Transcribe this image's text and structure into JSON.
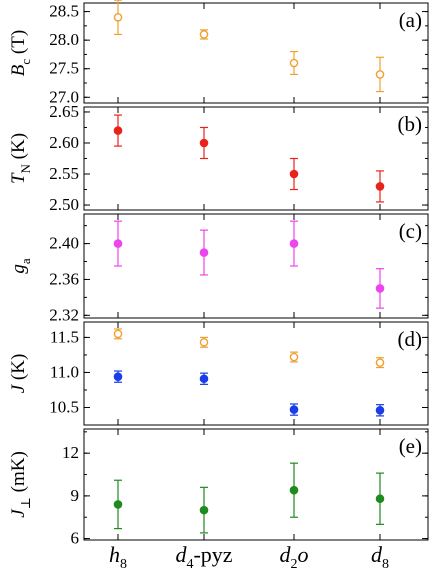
{
  "chart_data": [
    {
      "type": "scatter",
      "tag": "(a)",
      "ylabel": {
        "main": "B",
        "sub": "c",
        "unit": "(T)"
      },
      "ylim": [
        26.9,
        28.65
      ],
      "yticks": [
        "28.5",
        "28.0",
        "27.5",
        "27.0"
      ],
      "ytick_values": [
        28.5,
        28.0,
        27.5,
        27.0
      ],
      "series": [
        {
          "color": "#f0a030",
          "filled": false,
          "values": [
            28.4,
            28.1,
            27.6,
            27.4
          ],
          "errors": [
            0.3,
            0.08,
            0.2,
            0.3
          ]
        }
      ]
    },
    {
      "type": "scatter",
      "tag": "(b)",
      "ylabel": {
        "main": "T",
        "sub": "N",
        "unit": "(K)"
      },
      "ylim": [
        2.492,
        2.658
      ],
      "yticks": [
        "2.65",
        "2.60",
        "2.55",
        "2.50"
      ],
      "ytick_values": [
        2.65,
        2.6,
        2.55,
        2.5
      ],
      "series": [
        {
          "color": "#e8231a",
          "filled": true,
          "values": [
            2.62,
            2.6,
            2.55,
            2.53
          ],
          "errors": [
            0.025,
            0.025,
            0.025,
            0.025
          ]
        }
      ]
    },
    {
      "type": "scatter",
      "tag": "(c)",
      "ylabel": {
        "main": "g",
        "sub": "a",
        "unit": ""
      },
      "ylim": [
        2.317,
        2.433
      ],
      "yticks": [
        "2.40",
        "2.36",
        "2.32"
      ],
      "ytick_values": [
        2.4,
        2.36,
        2.32
      ],
      "series": [
        {
          "color": "#ee44ee",
          "filled": true,
          "values": [
            2.4,
            2.39,
            2.4,
            2.35
          ],
          "errors": [
            0.025,
            0.025,
            0.025,
            0.022
          ]
        }
      ]
    },
    {
      "type": "scatter",
      "tag": "(d)",
      "ylabel": {
        "main": "J",
        "sub": "",
        "unit": "(K)"
      },
      "ylim": [
        10.25,
        11.72
      ],
      "yticks": [
        "11.5",
        "11.0",
        "10.5"
      ],
      "ytick_values": [
        11.5,
        11.0,
        10.5
      ],
      "series": [
        {
          "color": "#f0a030",
          "filled": false,
          "values": [
            11.55,
            11.43,
            11.22,
            11.14
          ],
          "errors": [
            0.07,
            0.07,
            0.07,
            0.07
          ]
        },
        {
          "color": "#1a3de8",
          "filled": true,
          "values": [
            10.94,
            10.91,
            10.47,
            10.46
          ],
          "errors": [
            0.08,
            0.08,
            0.08,
            0.08
          ]
        }
      ]
    },
    {
      "type": "scatter",
      "tag": "(e)",
      "ylabel": {
        "main": "J",
        "sub": "⊥",
        "unit": "(mK)"
      },
      "ylim": [
        5.9,
        13.7
      ],
      "yticks": [
        "12",
        "9",
        "6"
      ],
      "ytick_values": [
        12,
        9,
        6
      ],
      "series": [
        {
          "color": "#1f8a1f",
          "filled": true,
          "values": [
            8.4,
            8.0,
            9.4,
            8.8
          ],
          "errors": [
            1.7,
            1.6,
            1.9,
            1.8
          ]
        }
      ]
    }
  ],
  "x_categories": [
    {
      "main": "h",
      "sub": "8",
      "rest": "",
      "italic": true
    },
    {
      "main": "d",
      "sub": "4",
      "rest": "-pyz",
      "italic": true
    },
    {
      "main": "d",
      "sub": "2",
      "rest": "o",
      "italic": true
    },
    {
      "main": "d",
      "sub": "8",
      "rest": "",
      "italic": true
    }
  ]
}
